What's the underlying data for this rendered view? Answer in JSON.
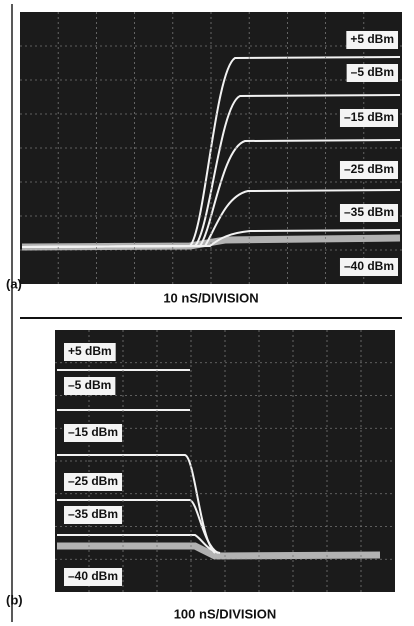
{
  "panels": [
    {
      "tag": "(a)",
      "caption": "10 nS/DIVISION",
      "labels": [
        "+5 dBm",
        "–5 dBm",
        "–15 dBm",
        "–25 dBm",
        "–35 dBm",
        "–40 dBm"
      ]
    },
    {
      "tag": "(b)",
      "caption": "100 nS/DIVISION",
      "labels": [
        "+5 dBm",
        "–5 dBm",
        "–15 dBm",
        "–25 dBm",
        "–35 dBm",
        "–40 dBm"
      ]
    }
  ]
}
